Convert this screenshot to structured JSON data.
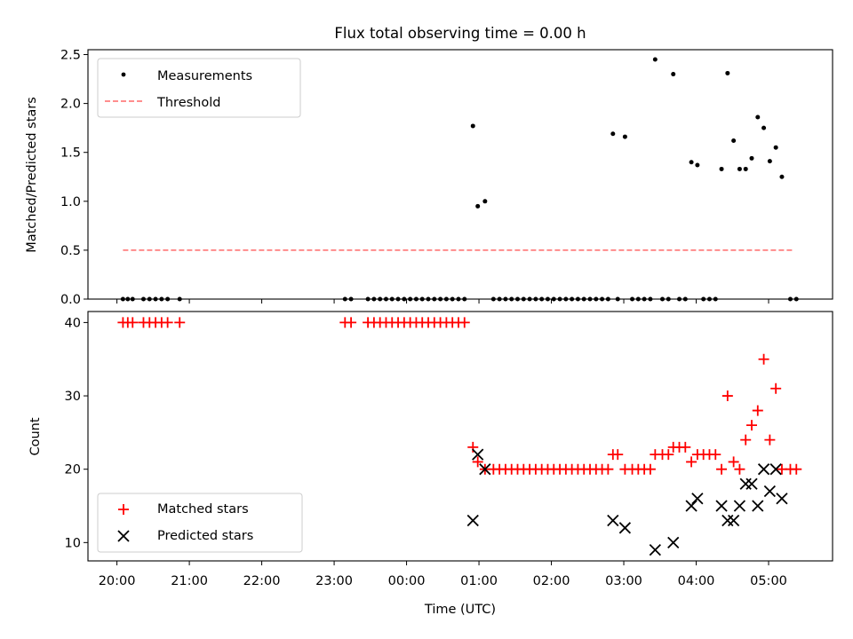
{
  "title": "Flux total observing time = 0.00 h",
  "chart_data": [
    {
      "type": "scatter",
      "ylabel": "Matched/Predicted stars",
      "xlim": [
        "19:36",
        "05:53"
      ],
      "ylim": [
        0,
        2.55
      ],
      "yticks": [
        "0.0",
        "0.5",
        "1.0",
        "1.5",
        "2.0",
        "2.5"
      ],
      "legend": {
        "position": "top-left",
        "entries": [
          {
            "label": "Measurements",
            "marker": "dot",
            "color": "#000000"
          },
          {
            "label": "Threshold",
            "marker": "dashed-line",
            "color": "#ff7f7f"
          }
        ]
      },
      "threshold": {
        "value": 0.5,
        "x_start": "20:05",
        "x_end": "05:20"
      },
      "series": [
        {
          "marker": "dot",
          "color": "#000000",
          "points": [
            [
              "20:05",
              0
            ],
            [
              "20:09",
              0
            ],
            [
              "20:13",
              0
            ],
            [
              "20:22",
              0
            ],
            [
              "20:27",
              0
            ],
            [
              "20:32",
              0
            ],
            [
              "20:37",
              0
            ],
            [
              "20:42",
              0
            ],
            [
              "20:52",
              0
            ],
            [
              "23:09",
              0
            ],
            [
              "23:14",
              0
            ],
            [
              "23:28",
              0
            ],
            [
              "23:33",
              0
            ],
            [
              "23:38",
              0
            ],
            [
              "23:43",
              0
            ],
            [
              "23:48",
              0
            ],
            [
              "23:53",
              0
            ],
            [
              "23:58",
              0
            ],
            [
              "00:03",
              0
            ],
            [
              "00:08",
              0
            ],
            [
              "00:13",
              0
            ],
            [
              "00:18",
              0
            ],
            [
              "00:23",
              0
            ],
            [
              "00:28",
              0
            ],
            [
              "00:33",
              0
            ],
            [
              "00:38",
              0
            ],
            [
              "00:43",
              0
            ],
            [
              "00:48",
              0
            ],
            [
              "00:55",
              1.77
            ],
            [
              "00:59",
              0.95
            ],
            [
              "01:05",
              1.0
            ],
            [
              "01:12",
              0
            ],
            [
              "01:17",
              0
            ],
            [
              "01:22",
              0
            ],
            [
              "01:27",
              0
            ],
            [
              "01:32",
              0
            ],
            [
              "01:37",
              0
            ],
            [
              "01:42",
              0
            ],
            [
              "01:47",
              0
            ],
            [
              "01:52",
              0
            ],
            [
              "01:57",
              0
            ],
            [
              "02:02",
              0
            ],
            [
              "02:07",
              0
            ],
            [
              "02:12",
              0
            ],
            [
              "02:17",
              0
            ],
            [
              "02:22",
              0
            ],
            [
              "02:27",
              0
            ],
            [
              "02:32",
              0
            ],
            [
              "02:37",
              0
            ],
            [
              "02:42",
              0
            ],
            [
              "02:47",
              0
            ],
            [
              "02:51",
              1.69
            ],
            [
              "02:55",
              0
            ],
            [
              "03:01",
              1.66
            ],
            [
              "03:07",
              0
            ],
            [
              "03:12",
              0
            ],
            [
              "03:17",
              0
            ],
            [
              "03:22",
              0
            ],
            [
              "03:26",
              2.45
            ],
            [
              "03:32",
              0
            ],
            [
              "03:37",
              0
            ],
            [
              "03:41",
              2.3
            ],
            [
              "03:46",
              0
            ],
            [
              "03:51",
              0
            ],
            [
              "03:56",
              1.4
            ],
            [
              "04:01",
              1.37
            ],
            [
              "04:06",
              0
            ],
            [
              "04:11",
              0
            ],
            [
              "04:16",
              0
            ],
            [
              "04:21",
              1.33
            ],
            [
              "04:26",
              2.31
            ],
            [
              "04:31",
              1.62
            ],
            [
              "04:36",
              1.33
            ],
            [
              "04:41",
              1.33
            ],
            [
              "04:46",
              1.44
            ],
            [
              "04:51",
              1.86
            ],
            [
              "04:56",
              1.75
            ],
            [
              "05:01",
              1.41
            ],
            [
              "05:06",
              1.55
            ],
            [
              "05:11",
              1.25
            ],
            [
              "05:18",
              0
            ],
            [
              "05:23",
              0
            ]
          ]
        }
      ]
    },
    {
      "type": "scatter",
      "xlabel": "Time (UTC)",
      "ylabel": "Count",
      "xlim": [
        "19:36",
        "05:53"
      ],
      "ylim": [
        7.5,
        41.5
      ],
      "yticks": [
        "10",
        "20",
        "30",
        "40"
      ],
      "xticks": [
        "20:00",
        "21:00",
        "22:00",
        "23:00",
        "00:00",
        "01:00",
        "02:00",
        "03:00",
        "04:00",
        "05:00"
      ],
      "legend": {
        "position": "lower-left",
        "entries": [
          {
            "label": "Matched stars",
            "marker": "plus",
            "color": "#ff0000"
          },
          {
            "label": "Predicted stars",
            "marker": "x",
            "color": "#000000"
          }
        ]
      },
      "series": [
        {
          "name": "Matched stars",
          "marker": "plus",
          "color": "#ff0000",
          "points": [
            [
              "20:05",
              40
            ],
            [
              "20:09",
              40
            ],
            [
              "20:13",
              40
            ],
            [
              "20:22",
              40
            ],
            [
              "20:27",
              40
            ],
            [
              "20:32",
              40
            ],
            [
              "20:37",
              40
            ],
            [
              "20:42",
              40
            ],
            [
              "20:52",
              40
            ],
            [
              "23:09",
              40
            ],
            [
              "23:14",
              40
            ],
            [
              "23:28",
              40
            ],
            [
              "23:33",
              40
            ],
            [
              "23:38",
              40
            ],
            [
              "23:43",
              40
            ],
            [
              "23:48",
              40
            ],
            [
              "23:53",
              40
            ],
            [
              "23:58",
              40
            ],
            [
              "00:03",
              40
            ],
            [
              "00:08",
              40
            ],
            [
              "00:13",
              40
            ],
            [
              "00:18",
              40
            ],
            [
              "00:23",
              40
            ],
            [
              "00:28",
              40
            ],
            [
              "00:33",
              40
            ],
            [
              "00:38",
              40
            ],
            [
              "00:43",
              40
            ],
            [
              "00:48",
              40
            ],
            [
              "00:55",
              23
            ],
            [
              "00:59",
              21
            ],
            [
              "01:05",
              20
            ],
            [
              "01:12",
              20
            ],
            [
              "01:17",
              20
            ],
            [
              "01:22",
              20
            ],
            [
              "01:27",
              20
            ],
            [
              "01:32",
              20
            ],
            [
              "01:37",
              20
            ],
            [
              "01:42",
              20
            ],
            [
              "01:47",
              20
            ],
            [
              "01:52",
              20
            ],
            [
              "01:57",
              20
            ],
            [
              "02:02",
              20
            ],
            [
              "02:07",
              20
            ],
            [
              "02:12",
              20
            ],
            [
              "02:17",
              20
            ],
            [
              "02:22",
              20
            ],
            [
              "02:27",
              20
            ],
            [
              "02:32",
              20
            ],
            [
              "02:37",
              20
            ],
            [
              "02:42",
              20
            ],
            [
              "02:47",
              20
            ],
            [
              "02:51",
              22
            ],
            [
              "02:55",
              22
            ],
            [
              "03:01",
              20
            ],
            [
              "03:07",
              20
            ],
            [
              "03:12",
              20
            ],
            [
              "03:17",
              20
            ],
            [
              "03:22",
              20
            ],
            [
              "03:26",
              22
            ],
            [
              "03:32",
              22
            ],
            [
              "03:37",
              22
            ],
            [
              "03:41",
              23
            ],
            [
              "03:46",
              23
            ],
            [
              "03:51",
              23
            ],
            [
              "03:56",
              21
            ],
            [
              "04:01",
              22
            ],
            [
              "04:06",
              22
            ],
            [
              "04:11",
              22
            ],
            [
              "04:16",
              22
            ],
            [
              "04:21",
              20
            ],
            [
              "04:26",
              30
            ],
            [
              "04:31",
              21
            ],
            [
              "04:36",
              20
            ],
            [
              "04:41",
              24
            ],
            [
              "04:46",
              26
            ],
            [
              "04:51",
              28
            ],
            [
              "04:56",
              35
            ],
            [
              "05:01",
              24
            ],
            [
              "05:06",
              31
            ],
            [
              "05:11",
              20
            ],
            [
              "05:18",
              20
            ],
            [
              "05:23",
              20
            ]
          ]
        },
        {
          "name": "Predicted stars",
          "marker": "x",
          "color": "#000000",
          "points": [
            [
              "00:55",
              13
            ],
            [
              "00:59",
              22
            ],
            [
              "01:05",
              20
            ],
            [
              "02:51",
              13
            ],
            [
              "03:01",
              12
            ],
            [
              "03:26",
              9
            ],
            [
              "03:41",
              10
            ],
            [
              "03:56",
              15
            ],
            [
              "04:01",
              16
            ],
            [
              "04:21",
              15
            ],
            [
              "04:26",
              13
            ],
            [
              "04:31",
              13
            ],
            [
              "04:36",
              15
            ],
            [
              "04:41",
              18
            ],
            [
              "04:46",
              18
            ],
            [
              "04:51",
              15
            ],
            [
              "04:56",
              20
            ],
            [
              "05:01",
              17
            ],
            [
              "05:06",
              20
            ],
            [
              "05:11",
              16
            ]
          ]
        }
      ]
    }
  ]
}
